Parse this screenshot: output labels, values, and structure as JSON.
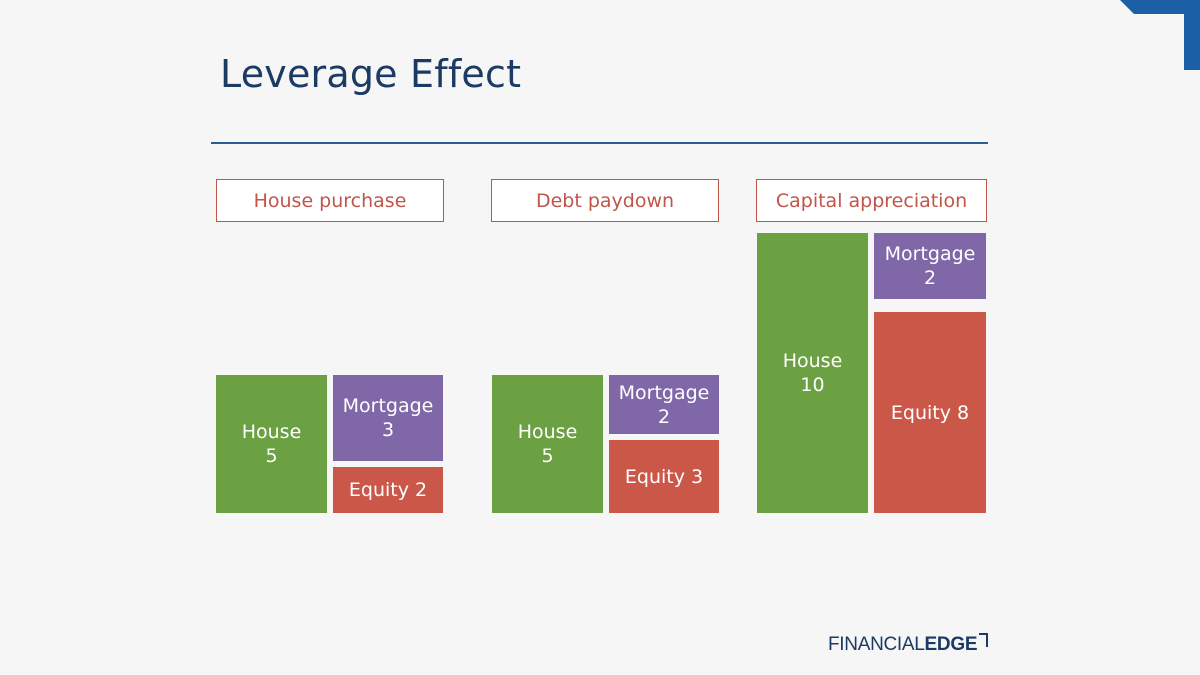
{
  "title": "Leverage Effect",
  "colors": {
    "house": "#6ba143",
    "mortgage": "#8068a8",
    "equity": "#cb5749",
    "header_border": "#c0554a",
    "title": "#1b3a64",
    "accent": "#2b5f93"
  },
  "panels": [
    {
      "header": "House purchase",
      "house": {
        "label": "House",
        "value": "5"
      },
      "mortgage": {
        "label": "Mortgage",
        "value": "3"
      },
      "equity": {
        "label": "Equity 2"
      }
    },
    {
      "header": "Debt paydown",
      "house": {
        "label": "House",
        "value": "5"
      },
      "mortgage": {
        "label": "Mortgage",
        "value": "2"
      },
      "equity": {
        "label": "Equity 3"
      }
    },
    {
      "header": "Capital appreciation",
      "house": {
        "label": "House",
        "value": "10"
      },
      "mortgage": {
        "label": "Mortgage",
        "value": "2"
      },
      "equity": {
        "label": "Equity 8"
      }
    }
  ],
  "logo": {
    "part1": "FINANCIAL",
    "part2": "EDGE",
    "icon": "corner-bracket-icon"
  }
}
